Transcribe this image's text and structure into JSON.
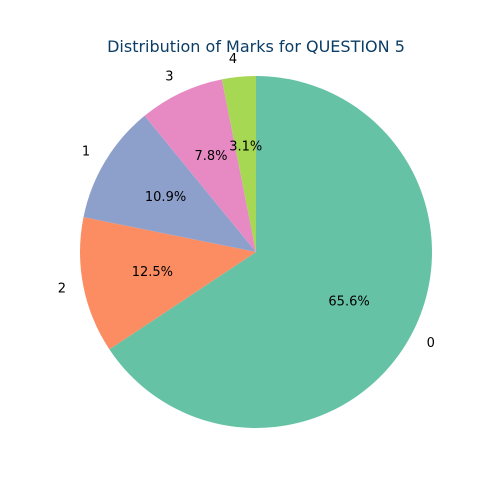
{
  "chart_data": {
    "type": "pie",
    "title": "Distribution of Marks for QUESTION 5",
    "start_angle_deg": 90,
    "direction": "clockwise",
    "slices": [
      {
        "label": "0",
        "value": 65.6,
        "pct_label": "65.6%",
        "color": "#66c2a5"
      },
      {
        "label": "2",
        "value": 12.5,
        "pct_label": "12.5%",
        "color": "#fc8d62"
      },
      {
        "label": "1",
        "value": 10.9,
        "pct_label": "10.9%",
        "color": "#8da0cb"
      },
      {
        "label": "3",
        "value": 7.8,
        "pct_label": "7.8%",
        "color": "#e78ac3"
      },
      {
        "label": "4",
        "value": 3.1,
        "pct_label": "3.1%",
        "color": "#a6d854"
      }
    ]
  }
}
